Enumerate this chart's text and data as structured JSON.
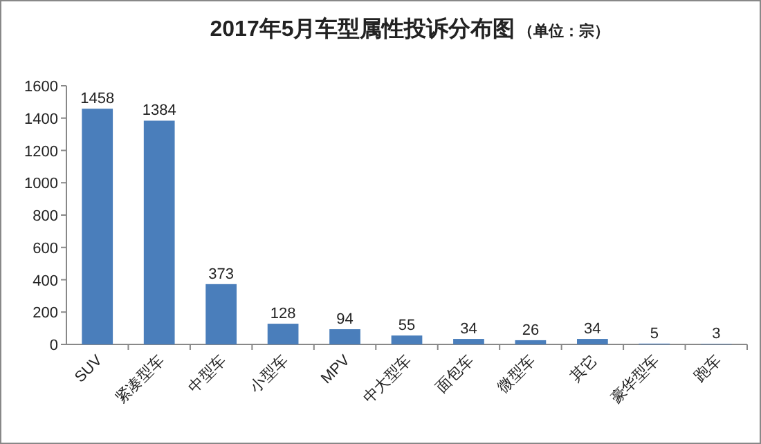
{
  "chart_data": {
    "type": "bar",
    "title": "2017年5月车型属性投诉分布图",
    "subtitle": "（单位：宗）",
    "categories": [
      "SUV",
      "紧凑型车",
      "中型车",
      "小型车",
      "MPV",
      "中大型车",
      "面包车",
      "微型车",
      "其它",
      "豪华型车",
      "跑车"
    ],
    "values": [
      1458,
      1384,
      373,
      128,
      94,
      55,
      34,
      26,
      34,
      5,
      3
    ],
    "color": "#4a7ebb",
    "ylim": [
      0,
      1600
    ],
    "yticks": [
      0,
      200,
      400,
      600,
      800,
      1000,
      1200,
      1400,
      1600
    ],
    "data_labels": true
  }
}
